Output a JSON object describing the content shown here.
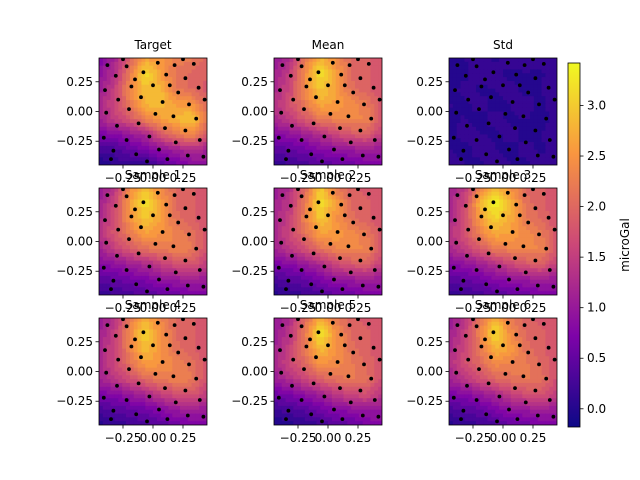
{
  "chart_data": {
    "type": "heatmap",
    "layout": "3x3 grid of filled-contour panels with scatter points, shared colorbar",
    "colormap": "plasma",
    "xlim": [
      -0.45,
      0.45
    ],
    "ylim": [
      -0.45,
      0.45
    ],
    "x_ticks": [
      -0.25,
      0.0,
      0.25
    ],
    "x_tick_labels": [
      "−0.25",
      "0.00",
      "0.25"
    ],
    "y_ticks": [
      0.25,
      0.0,
      -0.25
    ],
    "y_tick_labels": [
      "0.25",
      "0.00",
      "−0.25"
    ],
    "colorbar": {
      "label": "microGal",
      "vmin": -0.18,
      "vmax": 3.42,
      "ticks": [
        0.0,
        0.5,
        1.0,
        1.5,
        2.0,
        2.5,
        3.0
      ],
      "tick_labels": [
        "0.0",
        "0.5",
        "1.0",
        "1.5",
        "2.0",
        "2.5",
        "3.0"
      ]
    },
    "panels": [
      {
        "title": "Target",
        "field": [
          [
            0.7,
            1.1,
            1.9,
            2.6,
            2.5,
            2.3,
            2.2,
            2.0
          ],
          [
            0.9,
            1.3,
            2.2,
            3.2,
            2.6,
            2.1,
            2.0,
            1.9
          ],
          [
            1.0,
            1.5,
            2.4,
            2.9,
            2.8,
            2.2,
            2.0,
            1.8
          ],
          [
            1.2,
            1.6,
            2.2,
            2.8,
            2.9,
            2.6,
            2.5,
            2.0
          ],
          [
            1.1,
            1.5,
            1.8,
            2.3,
            2.6,
            2.8,
            3.0,
            2.2
          ],
          [
            0.7,
            0.8,
            1.0,
            1.2,
            1.8,
            2.2,
            2.4,
            1.8
          ],
          [
            0.3,
            0.3,
            0.5,
            0.7,
            0.9,
            1.1,
            1.3,
            1.1
          ],
          [
            -0.1,
            0.1,
            0.2,
            0.0,
            0.4,
            0.6,
            0.8,
            0.9
          ]
        ]
      },
      {
        "title": "Mean",
        "field": [
          [
            1.0,
            1.2,
            2.2,
            2.8,
            2.4,
            2.0,
            1.9,
            1.8
          ],
          [
            1.1,
            1.5,
            2.4,
            3.2,
            2.6,
            2.0,
            1.9,
            1.8
          ],
          [
            1.2,
            1.6,
            2.4,
            3.0,
            2.6,
            2.1,
            1.9,
            1.7
          ],
          [
            1.3,
            1.7,
            2.2,
            2.7,
            2.6,
            2.4,
            2.2,
            1.8
          ],
          [
            1.2,
            1.5,
            1.8,
            2.2,
            2.3,
            2.4,
            2.3,
            1.8
          ],
          [
            0.8,
            0.9,
            1.1,
            1.3,
            1.6,
            1.8,
            1.9,
            1.5
          ],
          [
            0.4,
            0.5,
            0.6,
            0.8,
            0.9,
            1.0,
            1.1,
            1.0
          ],
          [
            0.1,
            0.2,
            0.3,
            0.4,
            0.5,
            0.6,
            0.7,
            0.8
          ]
        ]
      },
      {
        "title": "Std",
        "field": [
          [
            0.05,
            0.08,
            0.1,
            0.06,
            0.12,
            0.08,
            0.1,
            0.2
          ],
          [
            0.06,
            0.05,
            0.12,
            0.1,
            0.05,
            0.08,
            0.06,
            0.15
          ],
          [
            0.04,
            0.1,
            0.06,
            0.08,
            0.1,
            0.05,
            0.08,
            0.1
          ],
          [
            0.08,
            0.06,
            0.1,
            0.05,
            0.08,
            0.1,
            0.06,
            0.12
          ],
          [
            0.06,
            0.08,
            0.05,
            0.1,
            0.06,
            0.08,
            0.05,
            0.1
          ],
          [
            0.05,
            0.1,
            0.08,
            0.06,
            0.1,
            0.05,
            0.08,
            0.12
          ],
          [
            0.08,
            0.05,
            0.1,
            0.08,
            0.05,
            0.1,
            0.06,
            0.1
          ],
          [
            0.1,
            0.08,
            0.06,
            0.1,
            0.08,
            0.06,
            0.1,
            0.15
          ]
        ]
      },
      {
        "title": "Sample 1",
        "field": [
          [
            1.0,
            1.4,
            2.4,
            2.9,
            2.4,
            2.0,
            1.9,
            1.8
          ],
          [
            1.1,
            1.6,
            2.6,
            3.2,
            2.6,
            2.0,
            1.9,
            1.8
          ],
          [
            1.2,
            1.7,
            2.5,
            3.0,
            2.6,
            2.1,
            1.9,
            1.7
          ],
          [
            1.3,
            1.8,
            2.2,
            2.6,
            2.5,
            2.3,
            2.1,
            1.8
          ],
          [
            1.1,
            1.5,
            1.8,
            2.1,
            2.2,
            2.3,
            2.2,
            1.7
          ],
          [
            0.8,
            0.9,
            1.1,
            1.2,
            1.5,
            1.7,
            1.8,
            1.5
          ],
          [
            0.4,
            0.5,
            0.6,
            0.7,
            0.9,
            1.0,
            1.1,
            1.0
          ],
          [
            0.1,
            0.2,
            0.3,
            0.4,
            0.5,
            0.6,
            0.7,
            0.8
          ]
        ]
      },
      {
        "title": "Sample 2",
        "field": [
          [
            1.0,
            1.3,
            2.0,
            3.0,
            2.2,
            1.9,
            1.8,
            1.8
          ],
          [
            1.1,
            1.4,
            2.2,
            3.2,
            2.6,
            2.0,
            1.9,
            1.8
          ],
          [
            1.2,
            1.5,
            2.3,
            3.0,
            2.5,
            2.1,
            1.9,
            1.7
          ],
          [
            1.2,
            1.6,
            2.1,
            2.6,
            2.6,
            2.4,
            2.2,
            1.8
          ],
          [
            1.1,
            1.4,
            1.7,
            2.1,
            2.3,
            2.4,
            2.3,
            1.8
          ],
          [
            0.7,
            0.8,
            1.0,
            1.2,
            1.6,
            1.8,
            1.9,
            1.5
          ],
          [
            0.3,
            0.4,
            0.5,
            0.7,
            0.9,
            1.0,
            1.1,
            1.0
          ],
          [
            0.0,
            0.1,
            0.2,
            0.3,
            0.5,
            0.6,
            0.7,
            0.8
          ]
        ]
      },
      {
        "title": "Sample 3",
        "field": [
          [
            1.1,
            1.4,
            2.3,
            2.8,
            2.5,
            2.0,
            1.9,
            1.8
          ],
          [
            1.2,
            1.6,
            2.8,
            3.4,
            2.8,
            2.1,
            1.9,
            1.8
          ],
          [
            1.2,
            1.7,
            2.6,
            3.1,
            2.7,
            2.2,
            2.0,
            1.7
          ],
          [
            1.3,
            1.7,
            2.3,
            2.7,
            2.6,
            2.4,
            2.2,
            1.8
          ],
          [
            1.2,
            1.5,
            1.8,
            2.2,
            2.3,
            2.4,
            2.3,
            1.8
          ],
          [
            0.8,
            0.9,
            1.1,
            1.3,
            1.6,
            1.8,
            1.9,
            1.5
          ],
          [
            0.4,
            0.5,
            0.6,
            0.8,
            0.9,
            1.0,
            1.1,
            1.0
          ],
          [
            0.1,
            0.2,
            0.3,
            0.4,
            0.5,
            0.6,
            0.7,
            0.8
          ]
        ]
      },
      {
        "title": "Sample 4",
        "field": [
          [
            1.0,
            1.3,
            2.2,
            2.7,
            2.3,
            2.0,
            1.9,
            1.8
          ],
          [
            1.1,
            1.5,
            2.4,
            3.1,
            2.5,
            2.0,
            1.9,
            1.8
          ],
          [
            1.2,
            1.6,
            2.3,
            2.9,
            2.5,
            2.1,
            1.9,
            1.7
          ],
          [
            1.2,
            1.6,
            2.1,
            2.6,
            2.5,
            2.3,
            2.1,
            1.8
          ],
          [
            1.1,
            1.4,
            1.7,
            2.0,
            2.2,
            2.3,
            2.2,
            1.7
          ],
          [
            0.7,
            0.8,
            1.0,
            1.2,
            1.5,
            1.7,
            1.8,
            1.5
          ],
          [
            0.3,
            0.4,
            0.5,
            0.6,
            0.8,
            1.0,
            1.1,
            1.0
          ],
          [
            0.0,
            0.1,
            0.2,
            0.3,
            0.4,
            0.6,
            0.7,
            0.8
          ]
        ]
      },
      {
        "title": "Sample 5",
        "field": [
          [
            1.0,
            1.2,
            2.0,
            2.7,
            2.2,
            1.9,
            1.8,
            1.8
          ],
          [
            1.0,
            1.4,
            2.2,
            3.3,
            2.5,
            2.0,
            1.9,
            1.8
          ],
          [
            1.1,
            1.5,
            2.2,
            2.9,
            2.5,
            2.1,
            1.9,
            1.7
          ],
          [
            1.2,
            1.6,
            2.0,
            2.5,
            2.4,
            2.2,
            2.0,
            1.8
          ],
          [
            1.0,
            1.3,
            1.6,
            1.9,
            2.1,
            2.2,
            2.1,
            1.7
          ],
          [
            0.6,
            0.7,
            0.9,
            1.1,
            1.4,
            1.6,
            1.7,
            1.4
          ],
          [
            0.2,
            0.3,
            0.4,
            0.6,
            0.8,
            0.9,
            1.0,
            1.0
          ],
          [
            -0.1,
            0.0,
            0.1,
            0.2,
            0.4,
            0.5,
            0.7,
            0.8
          ]
        ]
      },
      {
        "title": "Sample 6",
        "field": [
          [
            1.0,
            1.3,
            2.1,
            2.8,
            2.2,
            1.9,
            1.8,
            1.8
          ],
          [
            1.1,
            1.5,
            2.3,
            3.2,
            2.4,
            2.0,
            1.9,
            1.8
          ],
          [
            1.2,
            1.6,
            2.2,
            2.8,
            2.6,
            2.1,
            1.9,
            1.7
          ],
          [
            1.3,
            1.7,
            2.0,
            2.4,
            2.3,
            2.2,
            2.0,
            1.8
          ],
          [
            1.1,
            1.4,
            1.7,
            2.0,
            2.1,
            2.2,
            2.1,
            1.7
          ],
          [
            0.7,
            0.8,
            1.0,
            1.2,
            1.5,
            1.7,
            1.8,
            1.5
          ],
          [
            0.3,
            0.4,
            0.5,
            0.7,
            0.9,
            1.0,
            1.1,
            1.0
          ],
          [
            0.0,
            0.1,
            0.2,
            0.3,
            0.5,
            0.6,
            0.7,
            0.8
          ]
        ]
      }
    ],
    "scatter_points": [
      [
        -0.38,
        0.39
      ],
      [
        -0.22,
        0.38
      ],
      [
        0.04,
        0.41
      ],
      [
        0.18,
        0.39
      ],
      [
        0.34,
        0.4
      ],
      [
        -0.31,
        0.3
      ],
      [
        -0.08,
        0.33
      ],
      [
        0.11,
        0.31
      ],
      [
        0.27,
        0.28
      ],
      [
        -0.4,
        0.18
      ],
      [
        -0.18,
        0.21
      ],
      [
        0.0,
        0.22
      ],
      [
        0.21,
        0.16
      ],
      [
        0.38,
        0.2
      ],
      [
        -0.29,
        0.1
      ],
      [
        -0.1,
        0.12
      ],
      [
        0.08,
        0.08
      ],
      [
        0.3,
        0.06
      ],
      [
        -0.39,
        -0.01
      ],
      [
        -0.2,
        0.02
      ],
      [
        0.02,
        -0.02
      ],
      [
        0.17,
        -0.04
      ],
      [
        0.36,
        -0.06
      ],
      [
        -0.3,
        -0.12
      ],
      [
        -0.12,
        -0.1
      ],
      [
        0.1,
        -0.14
      ],
      [
        0.27,
        -0.16
      ],
      [
        -0.41,
        -0.22
      ],
      [
        -0.22,
        -0.24
      ],
      [
        -0.03,
        -0.21
      ],
      [
        0.19,
        -0.26
      ],
      [
        0.39,
        -0.24
      ],
      [
        -0.33,
        -0.33
      ],
      [
        -0.14,
        -0.36
      ],
      [
        0.05,
        -0.32
      ],
      [
        0.29,
        -0.37
      ],
      [
        -0.25,
        0.44
      ],
      [
        0.25,
        0.44
      ],
      [
        -0.05,
        -0.42
      ],
      [
        0.43,
        0.1
      ],
      [
        -0.15,
        0.27
      ],
      [
        0.14,
        0.22
      ],
      [
        -0.35,
        -0.4
      ],
      [
        0.12,
        -0.4
      ],
      [
        0.42,
        -0.38
      ]
    ]
  }
}
